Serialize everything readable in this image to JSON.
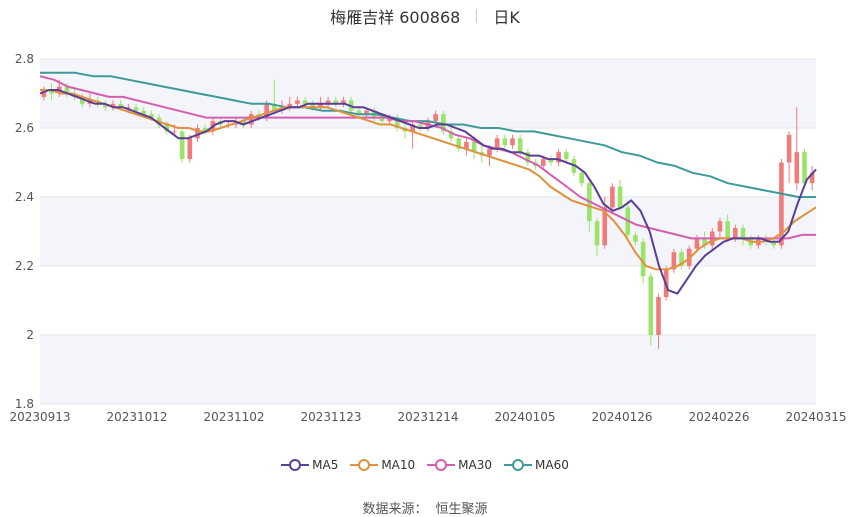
{
  "header": {
    "name": "梅雁吉祥 600868",
    "period": "日K"
  },
  "source": {
    "label": "数据来源：",
    "provider": "恒生聚源"
  },
  "colors": {
    "up": "#f07b7b",
    "down": "#9be36b",
    "grid": "#e6e6e6",
    "band": "#f4f5fa",
    "axis_text": "#555555"
  },
  "chart_data": {
    "type": "candlestick",
    "x_ticks": [
      "20230913",
      "20231012",
      "20231102",
      "20231123",
      "20231214",
      "20240105",
      "20240126",
      "20240226",
      "20240315"
    ],
    "ylim": [
      1.8,
      2.8
    ],
    "y_ticks": [
      "1.8",
      "2",
      "2.2",
      "2.4",
      "2.6",
      "2.8"
    ],
    "y_tick_values": [
      1.8,
      2.0,
      2.2,
      2.4,
      2.6,
      2.8
    ],
    "legend": [
      {
        "name": "MA5",
        "color": "#5b3e96"
      },
      {
        "name": "MA10",
        "color": "#e0913d"
      },
      {
        "name": "MA30",
        "color": "#d45fb0"
      },
      {
        "name": "MA60",
        "color": "#3f9a9a"
      }
    ],
    "candles": [
      [
        2.69,
        2.71,
        2.72,
        2.68
      ],
      [
        2.71,
        2.7,
        2.73,
        2.68
      ],
      [
        2.7,
        2.72,
        2.74,
        2.69
      ],
      [
        2.72,
        2.7,
        2.73,
        2.69
      ],
      [
        2.7,
        2.69,
        2.72,
        2.68
      ],
      [
        2.69,
        2.67,
        2.7,
        2.66
      ],
      [
        2.67,
        2.68,
        2.7,
        2.66
      ],
      [
        2.68,
        2.67,
        2.69,
        2.66
      ],
      [
        2.67,
        2.66,
        2.68,
        2.65
      ],
      [
        2.66,
        2.67,
        2.68,
        2.65
      ],
      [
        2.67,
        2.66,
        2.68,
        2.65
      ],
      [
        2.66,
        2.66,
        2.67,
        2.65
      ],
      [
        2.66,
        2.65,
        2.67,
        2.64
      ],
      [
        2.65,
        2.64,
        2.66,
        2.63
      ],
      [
        2.64,
        2.63,
        2.65,
        2.62
      ],
      [
        2.63,
        2.61,
        2.64,
        2.6
      ],
      [
        2.61,
        2.59,
        2.62,
        2.58
      ],
      [
        2.59,
        2.59,
        2.61,
        2.58
      ],
      [
        2.59,
        2.51,
        2.6,
        2.5
      ],
      [
        2.51,
        2.57,
        2.58,
        2.5
      ],
      [
        2.57,
        2.6,
        2.61,
        2.56
      ],
      [
        2.6,
        2.59,
        2.61,
        2.58
      ],
      [
        2.59,
        2.62,
        2.63,
        2.58
      ],
      [
        2.62,
        2.61,
        2.63,
        2.6
      ],
      [
        2.61,
        2.61,
        2.62,
        2.6
      ],
      [
        2.61,
        2.62,
        2.63,
        2.6
      ],
      [
        2.62,
        2.61,
        2.63,
        2.6
      ],
      [
        2.61,
        2.64,
        2.65,
        2.6
      ],
      [
        2.64,
        2.63,
        2.65,
        2.62
      ],
      [
        2.63,
        2.67,
        2.68,
        2.62
      ],
      [
        2.67,
        2.65,
        2.74,
        2.64
      ],
      [
        2.65,
        2.66,
        2.68,
        2.64
      ],
      [
        2.66,
        2.67,
        2.69,
        2.65
      ],
      [
        2.67,
        2.68,
        2.69,
        2.66
      ],
      [
        2.68,
        2.67,
        2.69,
        2.66
      ],
      [
        2.67,
        2.66,
        2.68,
        2.65
      ],
      [
        2.66,
        2.67,
        2.69,
        2.65
      ],
      [
        2.67,
        2.68,
        2.69,
        2.66
      ],
      [
        2.68,
        2.67,
        2.69,
        2.66
      ],
      [
        2.67,
        2.68,
        2.69,
        2.66
      ],
      [
        2.68,
        2.65,
        2.69,
        2.64
      ],
      [
        2.65,
        2.64,
        2.66,
        2.63
      ],
      [
        2.64,
        2.65,
        2.66,
        2.63
      ],
      [
        2.65,
        2.63,
        2.66,
        2.62
      ],
      [
        2.63,
        2.62,
        2.64,
        2.61
      ],
      [
        2.62,
        2.63,
        2.64,
        2.61
      ],
      [
        2.63,
        2.6,
        2.64,
        2.59
      ],
      [
        2.6,
        2.59,
        2.61,
        2.57
      ],
      [
        2.59,
        2.61,
        2.62,
        2.54
      ],
      [
        2.61,
        2.6,
        2.62,
        2.59
      ],
      [
        2.6,
        2.62,
        2.63,
        2.59
      ],
      [
        2.62,
        2.64,
        2.65,
        2.61
      ],
      [
        2.64,
        2.59,
        2.65,
        2.58
      ],
      [
        2.59,
        2.57,
        2.6,
        2.56
      ],
      [
        2.57,
        2.54,
        2.58,
        2.53
      ],
      [
        2.54,
        2.56,
        2.57,
        2.52
      ],
      [
        2.56,
        2.53,
        2.57,
        2.51
      ],
      [
        2.53,
        2.52,
        2.55,
        2.5
      ],
      [
        2.52,
        2.54,
        2.55,
        2.49
      ],
      [
        2.54,
        2.57,
        2.58,
        2.53
      ],
      [
        2.57,
        2.55,
        2.58,
        2.54
      ],
      [
        2.55,
        2.57,
        2.58,
        2.54
      ],
      [
        2.57,
        2.53,
        2.58,
        2.52
      ],
      [
        2.53,
        2.5,
        2.54,
        2.49
      ],
      [
        2.5,
        2.49,
        2.51,
        2.48
      ],
      [
        2.49,
        2.51,
        2.52,
        2.48
      ],
      [
        2.51,
        2.5,
        2.52,
        2.49
      ],
      [
        2.5,
        2.53,
        2.54,
        2.49
      ],
      [
        2.53,
        2.51,
        2.54,
        2.5
      ],
      [
        2.51,
        2.47,
        2.52,
        2.46
      ],
      [
        2.47,
        2.44,
        2.48,
        2.43
      ],
      [
        2.44,
        2.33,
        2.45,
        2.3
      ],
      [
        2.33,
        2.26,
        2.34,
        2.23
      ],
      [
        2.26,
        2.37,
        2.4,
        2.25
      ],
      [
        2.37,
        2.43,
        2.44,
        2.36
      ],
      [
        2.43,
        2.37,
        2.45,
        2.36
      ],
      [
        2.37,
        2.29,
        2.39,
        2.28
      ],
      [
        2.29,
        2.27,
        2.3,
        2.26
      ],
      [
        2.27,
        2.17,
        2.28,
        2.15
      ],
      [
        2.17,
        2.0,
        2.18,
        1.97
      ],
      [
        2.0,
        2.11,
        2.12,
        1.96
      ],
      [
        2.11,
        2.19,
        2.2,
        2.1
      ],
      [
        2.19,
        2.24,
        2.25,
        2.18
      ],
      [
        2.24,
        2.2,
        2.25,
        2.19
      ],
      [
        2.2,
        2.25,
        2.26,
        2.19
      ],
      [
        2.25,
        2.28,
        2.29,
        2.24
      ],
      [
        2.28,
        2.26,
        2.3,
        2.25
      ],
      [
        2.26,
        2.3,
        2.31,
        2.25
      ],
      [
        2.3,
        2.33,
        2.34,
        2.28
      ],
      [
        2.33,
        2.28,
        2.35,
        2.27
      ],
      [
        2.28,
        2.31,
        2.32,
        2.27
      ],
      [
        2.31,
        2.28,
        2.32,
        2.26
      ],
      [
        2.28,
        2.26,
        2.29,
        2.25
      ],
      [
        2.26,
        2.28,
        2.29,
        2.25
      ],
      [
        2.28,
        2.27,
        2.29,
        2.26
      ],
      [
        2.27,
        2.26,
        2.28,
        2.25
      ],
      [
        2.26,
        2.5,
        2.51,
        2.25
      ],
      [
        2.5,
        2.58,
        2.59,
        2.44
      ],
      [
        2.44,
        2.53,
        2.66,
        2.42
      ],
      [
        2.53,
        2.44,
        2.54,
        2.43
      ],
      [
        2.44,
        2.47,
        2.49,
        2.42
      ]
    ],
    "ma5": [
      2.7,
      2.71,
      2.71,
      2.7,
      2.69,
      2.68,
      2.67,
      2.67,
      2.66,
      2.66,
      2.65,
      2.64,
      2.63,
      2.61,
      2.59,
      2.57,
      2.57,
      2.58,
      2.59,
      2.61,
      2.62,
      2.62,
      2.61,
      2.62,
      2.63,
      2.64,
      2.65,
      2.66,
      2.66,
      2.67,
      2.67,
      2.67,
      2.67,
      2.67,
      2.66,
      2.66,
      2.65,
      2.64,
      2.63,
      2.62,
      2.61,
      2.6,
      2.6,
      2.61,
      2.61,
      2.6,
      2.59,
      2.57,
      2.55,
      2.54,
      2.54,
      2.53,
      2.53,
      2.52,
      2.52,
      2.51,
      2.51,
      2.5,
      2.49,
      2.47,
      2.43,
      2.38,
      2.36,
      2.37,
      2.39,
      2.36,
      2.3,
      2.2,
      2.13,
      2.12,
      2.16,
      2.2,
      2.23,
      2.25,
      2.27,
      2.28,
      2.28,
      2.28,
      2.28,
      2.27,
      2.27,
      2.3,
      2.38,
      2.45,
      2.48
    ],
    "ma10": [
      2.71,
      2.71,
      2.7,
      2.7,
      2.69,
      2.68,
      2.67,
      2.66,
      2.65,
      2.64,
      2.63,
      2.62,
      2.61,
      2.6,
      2.6,
      2.59,
      2.59,
      2.6,
      2.61,
      2.62,
      2.63,
      2.64,
      2.65,
      2.66,
      2.66,
      2.66,
      2.66,
      2.66,
      2.65,
      2.64,
      2.63,
      2.62,
      2.61,
      2.61,
      2.6,
      2.59,
      2.58,
      2.57,
      2.56,
      2.55,
      2.54,
      2.53,
      2.52,
      2.51,
      2.5,
      2.49,
      2.48,
      2.46,
      2.43,
      2.41,
      2.39,
      2.38,
      2.37,
      2.36,
      2.33,
      2.29,
      2.24,
      2.2,
      2.19,
      2.19,
      2.2,
      2.22,
      2.25,
      2.27,
      2.28,
      2.28,
      2.28,
      2.27,
      2.27,
      2.28,
      2.3,
      2.33,
      2.35,
      2.37
    ],
    "ma30": [
      2.75,
      2.74,
      2.72,
      2.71,
      2.7,
      2.69,
      2.69,
      2.68,
      2.67,
      2.66,
      2.65,
      2.64,
      2.63,
      2.63,
      2.63,
      2.63,
      2.63,
      2.63,
      2.63,
      2.63,
      2.63,
      2.63,
      2.63,
      2.63,
      2.63,
      2.63,
      2.62,
      2.62,
      2.61,
      2.6,
      2.58,
      2.57,
      2.55,
      2.54,
      2.53,
      2.51,
      2.49,
      2.46,
      2.43,
      2.4,
      2.38,
      2.36,
      2.34,
      2.32,
      2.31,
      2.3,
      2.29,
      2.28,
      2.28,
      2.28,
      2.28,
      2.28,
      2.28,
      2.28,
      2.28,
      2.29,
      2.29
    ],
    "ma60": [
      2.76,
      2.76,
      2.76,
      2.75,
      2.75,
      2.74,
      2.73,
      2.72,
      2.71,
      2.7,
      2.69,
      2.68,
      2.67,
      2.67,
      2.66,
      2.66,
      2.65,
      2.65,
      2.64,
      2.64,
      2.63,
      2.62,
      2.62,
      2.61,
      2.61,
      2.6,
      2.6,
      2.59,
      2.59,
      2.58,
      2.57,
      2.56,
      2.55,
      2.53,
      2.52,
      2.5,
      2.49,
      2.47,
      2.46,
      2.44,
      2.43,
      2.42,
      2.41,
      2.4,
      2.4
    ]
  }
}
